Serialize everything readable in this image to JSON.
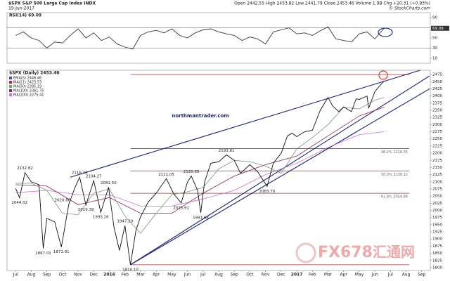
{
  "header": {
    "symbol": "$SPX S&P 500 Large Cap Index INDX",
    "date": "19-Jun-2017",
    "quote": "Open 2442.55 High 2453.82 Low 2441.79 Close 2453.46 Volume 1.9B Chg +20.31 (+0.83%)",
    "source": "© StockCharts.com"
  },
  "watermark": {
    "brand": "FX678",
    "name": "汇通网"
  },
  "chart_data": [
    {
      "type": "line",
      "title": "RSI(14) 69.09",
      "x": [
        0,
        0.5,
        1,
        1.5,
        2,
        2.5,
        3,
        3.5,
        4,
        4.5,
        5,
        5.5,
        6,
        6.5,
        7,
        7.5,
        8,
        8.5,
        9,
        9.5,
        10,
        10.5,
        11,
        11.5,
        12,
        12.5,
        13,
        13.5,
        14,
        14.5,
        15,
        15.5,
        16,
        16.5,
        17,
        17.5,
        18,
        18.5,
        19,
        19.5,
        20,
        20.5,
        21,
        21.5,
        22,
        22.5,
        23,
        23.5,
        23.6
      ],
      "series": [
        {
          "color": "#333333",
          "values": [
            55,
            62,
            50,
            45,
            30,
            42,
            40,
            55,
            68,
            50,
            60,
            45,
            52,
            38,
            32,
            28,
            55,
            62,
            65,
            60,
            68,
            55,
            50,
            60,
            66,
            68,
            62,
            58,
            55,
            45,
            52,
            48,
            38,
            62,
            66,
            70,
            58,
            60,
            55,
            64,
            72,
            48,
            45,
            42,
            58,
            62,
            48,
            66,
            69.09
          ]
        }
      ],
      "xlim": [
        -0.55,
        26.55
      ],
      "ylim": [
        0,
        100
      ],
      "yticks": [
        90,
        50,
        30,
        10
      ],
      "ref_lines": [
        70,
        30
      ],
      "last": 69.09
    },
    {
      "type": "line",
      "title": "$SPX (Daily) 2453.46",
      "legend": [
        {
          "label": "EMA(5) 2446.46",
          "color": "#3355cc"
        },
        {
          "label": "MA(21) 2423.53",
          "color": "#cc2222"
        },
        {
          "label": "MA(50) 2395.19",
          "color": "#7a9a7a"
        },
        {
          "label": "MA(100) 2361.75",
          "color": "#8b2252"
        },
        {
          "label": "MA(200) 2275.41",
          "color": "#d070d0"
        }
      ],
      "series": [
        {
          "color": "#111111",
          "x": [
            0,
            0.25,
            0.6,
            1,
            1.5,
            1.77,
            2,
            2.5,
            2.93,
            3.4,
            3.8,
            4.1,
            4.5,
            5,
            5.45,
            5.95,
            6.3,
            6.65,
            7,
            7.35,
            7.7,
            8,
            8.5,
            9,
            9.65,
            10.1,
            10.6,
            11,
            11.25,
            11.65,
            11.85,
            12.1,
            12.5,
            13,
            13.5,
            14,
            14.4,
            15,
            15.5,
            16.1,
            16.5,
            17,
            17.4,
            17.7,
            18,
            18.5,
            19,
            19.5,
            20,
            20.3,
            20.7,
            21,
            21.5,
            21.8,
            22,
            22.5,
            22.6,
            23,
            23.3,
            23.6
          ],
          "values": [
            2077,
            2044,
            2132,
            2100,
            2090,
            1867,
            1972,
            1960,
            1872,
            2020,
            2080,
            2116,
            2019,
            2104,
            1993,
            2081,
            1940,
            1860,
            1947,
            1810,
            1930,
            1978,
            2030,
            2060,
            2111,
            2060,
            2026,
            2099,
            2120,
            2070,
            1992,
            2100,
            2165,
            2170,
            2194,
            2175,
            2130,
            2160,
            2135,
            2084,
            2165,
            2200,
            2260,
            2270,
            2258,
            2275,
            2280,
            2350,
            2395,
            2365,
            2345,
            2362,
            2345,
            2390,
            2388,
            2400,
            2357,
            2415,
            2435,
            2453
          ]
        },
        {
          "color": "#7a9a7a",
          "x": [
            0,
            1,
            2,
            3,
            4,
            5,
            6,
            7,
            8,
            9,
            10,
            11,
            12,
            13,
            14,
            15,
            16,
            17,
            18,
            19,
            20,
            21,
            22,
            23,
            23.6
          ],
          "values": [
            2095,
            2095,
            2070,
            1990,
            1985,
            2060,
            2075,
            1980,
            1920,
            1990,
            2055,
            2065,
            2080,
            2145,
            2175,
            2170,
            2155,
            2130,
            2215,
            2255,
            2300,
            2360,
            2355,
            2385,
            2395
          ]
        },
        {
          "color": "#8b2252",
          "x": [
            0,
            2,
            4,
            6,
            8,
            10,
            12,
            14,
            16,
            18,
            20,
            22,
            23.6
          ],
          "values": [
            2090,
            2085,
            2020,
            2045,
            1990,
            1990,
            2060,
            2120,
            2160,
            2190,
            2260,
            2330,
            2361
          ]
        },
        {
          "color": "#d070d0",
          "x": [
            0,
            2,
            4,
            6,
            8,
            10,
            12,
            14,
            16,
            18,
            20,
            22,
            23.6
          ],
          "values": [
            2062,
            2070,
            2055,
            2055,
            2015,
            2015,
            2040,
            2070,
            2125,
            2165,
            2220,
            2265,
            2275
          ]
        }
      ],
      "trendlines": [
        {
          "x": [
            3.5,
            25.9
          ],
          "y": [
            2116,
            2490
          ]
        },
        {
          "x": [
            7.35,
            26.5
          ],
          "y": [
            1810,
            2470
          ]
        },
        {
          "x": [
            7.35,
            26.5
          ],
          "y": [
            1810,
            2425
          ]
        }
      ],
      "fib": [
        {
          "value": 2216.35,
          "label": "38.2% 2216.35"
        },
        {
          "value": 2138.12,
          "label": "50.0% 2138.12"
        },
        {
          "value": 2059.88,
          "label": "61.8% 2059.88"
        }
      ],
      "levels": [
        2475,
        1810
      ],
      "annotations": [
        {
          "x": 0.6,
          "value": 2132.82,
          "label": "2132.82",
          "side": "high"
        },
        {
          "x": 0.25,
          "value": 2044.02,
          "label": "2044.02",
          "side": "low"
        },
        {
          "x": 1.77,
          "value": 1867.01,
          "label": "1867.01",
          "side": "low"
        },
        {
          "x": 2.93,
          "value": 1871.91,
          "label": "1871.91",
          "side": "low"
        },
        {
          "x": 3.0,
          "value": 2020.86,
          "label": "2020.86",
          "side": "high"
        },
        {
          "x": 4.5,
          "value": 2019.39,
          "label": "2019.39",
          "side": "low"
        },
        {
          "x": 4.1,
          "value": 2116.48,
          "label": "2116.48",
          "side": "high"
        },
        {
          "x": 5.0,
          "value": 2104.27,
          "label": "2104.27",
          "side": "high"
        },
        {
          "x": 5.45,
          "value": 1993.26,
          "label": "1993.26",
          "side": "low"
        },
        {
          "x": 5.95,
          "value": 2081.56,
          "label": "2081.56",
          "side": "high"
        },
        {
          "x": 7.0,
          "value": 1947.2,
          "label": "1947.20",
          "side": "high"
        },
        {
          "x": 7.35,
          "value": 1810.1,
          "label": "1810.10",
          "side": "low"
        },
        {
          "x": 9.65,
          "value": 2111.05,
          "label": "2111.05",
          "side": "high"
        },
        {
          "x": 10.6,
          "value": 2025.91,
          "label": "2025.91",
          "side": "low"
        },
        {
          "x": 11.25,
          "value": 2120.55,
          "label": "2120.55",
          "side": "high"
        },
        {
          "x": 11.85,
          "value": 1991.68,
          "label": "1991.68",
          "side": "low"
        },
        {
          "x": 13.5,
          "value": 2193.81,
          "label": "2193.81",
          "side": "high"
        },
        {
          "x": 16.1,
          "value": 2083.79,
          "label": "2083.79",
          "side": "low"
        }
      ],
      "site": "northmantrader.com",
      "xlim": [
        -0.55,
        26.55
      ],
      "ylim": [
        1790,
        2490
      ],
      "yticks": [
        2475,
        2450,
        2425,
        2400,
        2375,
        2350,
        2325,
        2300,
        2275,
        2250,
        2225,
        2200,
        2175,
        2150,
        2125,
        2100,
        2075,
        2050,
        2025,
        2000,
        1975,
        1950,
        1925,
        1900,
        1875,
        1850,
        1825,
        1800
      ],
      "xticks": [
        {
          "value": 0,
          "label": "Jul"
        },
        {
          "value": 1,
          "label": "Aug"
        },
        {
          "value": 2,
          "label": "Sep"
        },
        {
          "value": 3,
          "label": "Oct"
        },
        {
          "value": 4,
          "label": "Nov"
        },
        {
          "value": 5,
          "label": "Dec"
        },
        {
          "value": 6,
          "label": "2016"
        },
        {
          "value": 7,
          "label": "Feb"
        },
        {
          "value": 8,
          "label": "Mar"
        },
        {
          "value": 9,
          "label": "Apr"
        },
        {
          "value": 10,
          "label": "May"
        },
        {
          "value": 11,
          "label": "Jun"
        },
        {
          "value": 12,
          "label": "Jul"
        },
        {
          "value": 13,
          "label": "Aug"
        },
        {
          "value": 14,
          "label": "Sep"
        },
        {
          "value": 15,
          "label": "Oct"
        },
        {
          "value": 16,
          "label": "Nov"
        },
        {
          "value": 17,
          "label": "Dec"
        },
        {
          "value": 18,
          "label": "2017"
        },
        {
          "value": 19,
          "label": "Feb"
        },
        {
          "value": 20,
          "label": "Mar"
        },
        {
          "value": 21,
          "label": "Apr"
        },
        {
          "value": 22,
          "label": "May"
        },
        {
          "value": 23,
          "label": "Jun"
        },
        {
          "value": 24,
          "label": "Jul"
        },
        {
          "value": 25,
          "label": "Aug"
        },
        {
          "value": 26,
          "label": "Sep"
        }
      ]
    }
  ]
}
